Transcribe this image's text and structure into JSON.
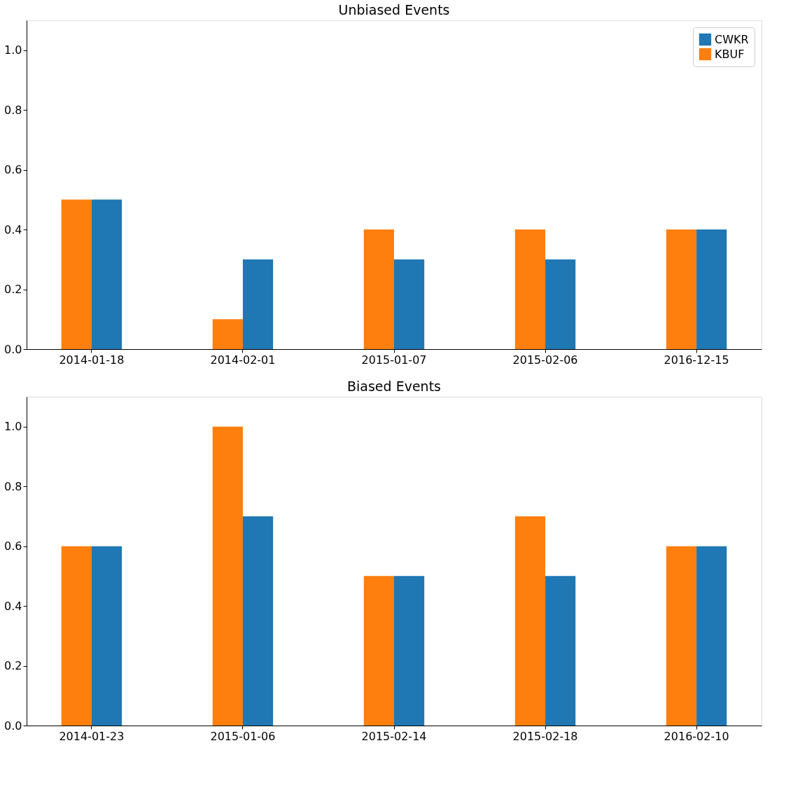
{
  "chart_data": [
    {
      "type": "bar",
      "title": "Unbiased Events",
      "categories": [
        "2014-01-18",
        "2014-02-01",
        "2015-01-07",
        "2015-02-06",
        "2016-12-15"
      ],
      "series": [
        {
          "name": "KBUF",
          "color": "#ff7f0e",
          "values": [
            0.5,
            0.1,
            0.4,
            0.4,
            0.4
          ]
        },
        {
          "name": "CWKR",
          "color": "#1f77b4",
          "values": [
            0.5,
            0.3,
            0.3,
            0.3,
            0.4
          ]
        }
      ],
      "ylim": [
        0,
        1.1
      ],
      "yticks": [
        {
          "value": 0,
          "label": "0.0"
        },
        0.2,
        0.4,
        0.6,
        0.8,
        {
          "value": 1,
          "label": "1.0"
        }
      ],
      "grid": false,
      "legend": "top right"
    },
    {
      "type": "bar",
      "title": "Biased Events",
      "categories": [
        "2014-01-23",
        "2015-01-06",
        "2015-02-14",
        "2015-02-18",
        "2016-02-10"
      ],
      "series": [
        {
          "name": "KBUF",
          "color": "#ff7f0e",
          "values": [
            0.6,
            1.0,
            0.5,
            0.7,
            0.6
          ]
        },
        {
          "name": "CWKR",
          "color": "#1f77b4",
          "values": [
            0.6,
            0.7,
            0.5,
            0.5,
            0.6
          ]
        }
      ],
      "ylim": [
        0,
        1.1
      ],
      "yticks": [
        {
          "value": 0,
          "label": "0.0"
        },
        0.2,
        0.4,
        0.6,
        0.8,
        {
          "value": 1,
          "label": "1.0"
        }
      ],
      "grid": false,
      "legend": "top right"
    }
  ]
}
